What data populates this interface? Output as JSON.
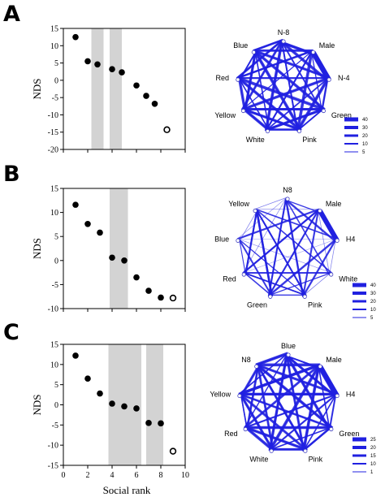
{
  "panel_labels": [
    "A",
    "B",
    "C"
  ],
  "chart_data": [
    {
      "type": "scatter",
      "panel": "A",
      "ylabel": "NDS",
      "xlim": [
        0,
        10
      ],
      "ylim": [
        -20,
        15
      ],
      "yticks": [
        15,
        10,
        5,
        0,
        -5,
        -10,
        -15,
        -20
      ],
      "shaded_x_ranges": [
        [
          2.3,
          3.3
        ],
        [
          3.8,
          4.8
        ]
      ],
      "points": [
        {
          "x": 1,
          "y": 12.5,
          "filled": true
        },
        {
          "x": 2,
          "y": 5.5,
          "filled": true
        },
        {
          "x": 2.8,
          "y": 4.6,
          "filled": true
        },
        {
          "x": 4,
          "y": 3.2,
          "filled": true
        },
        {
          "x": 4.8,
          "y": 2.3,
          "filled": true
        },
        {
          "x": 6,
          "y": -1.5,
          "filled": true
        },
        {
          "x": 6.8,
          "y": -4.5,
          "filled": true
        },
        {
          "x": 7.5,
          "y": -6.8,
          "filled": true
        },
        {
          "x": 8.5,
          "y": -14.3,
          "filled": false
        }
      ]
    },
    {
      "type": "scatter",
      "panel": "B",
      "ylabel": "NDS",
      "xlim": [
        0,
        10
      ],
      "ylim": [
        -10,
        15
      ],
      "yticks": [
        15,
        10,
        5,
        0,
        -5,
        -10
      ],
      "shaded_x_ranges": [
        [
          3.8,
          5.3
        ]
      ],
      "points": [
        {
          "x": 1,
          "y": 11.6,
          "filled": true
        },
        {
          "x": 2,
          "y": 7.6,
          "filled": true
        },
        {
          "x": 3,
          "y": 5.8,
          "filled": true
        },
        {
          "x": 4,
          "y": 0.6,
          "filled": true
        },
        {
          "x": 5,
          "y": 0,
          "filled": true
        },
        {
          "x": 6,
          "y": -3.5,
          "filled": true
        },
        {
          "x": 7,
          "y": -6.3,
          "filled": true
        },
        {
          "x": 8,
          "y": -7.7,
          "filled": true
        },
        {
          "x": 9,
          "y": -7.8,
          "filled": false
        }
      ]
    },
    {
      "type": "scatter",
      "panel": "C",
      "ylabel": "NDS",
      "xlabel": "Social rank",
      "xlim": [
        0,
        10
      ],
      "ylim": [
        -15,
        15
      ],
      "xticks": [
        0,
        2,
        4,
        6,
        8,
        10
      ],
      "yticks": [
        15,
        10,
        5,
        0,
        -5,
        -10,
        -15
      ],
      "shaded_x_ranges": [
        [
          3.7,
          6.4
        ],
        [
          6.8,
          8.2
        ]
      ],
      "points": [
        {
          "x": 1,
          "y": 12.2,
          "filled": true
        },
        {
          "x": 2,
          "y": 6.5,
          "filled": true
        },
        {
          "x": 3,
          "y": 2.8,
          "filled": true
        },
        {
          "x": 4,
          "y": 0.3,
          "filled": true
        },
        {
          "x": 5,
          "y": -0.4,
          "filled": true
        },
        {
          "x": 6,
          "y": -0.9,
          "filled": true
        },
        {
          "x": 7,
          "y": -4.5,
          "filled": true
        },
        {
          "x": 8,
          "y": -4.6,
          "filled": true
        },
        {
          "x": 9,
          "y": -11.5,
          "filled": false
        }
      ]
    }
  ],
  "networks": [
    {
      "panel": "A",
      "nodes": [
        "N-8",
        "Male",
        "N-4",
        "Green",
        "Pink",
        "White",
        "Yellow",
        "Red",
        "Blue"
      ],
      "legend": [
        "40",
        "30",
        "20",
        "10",
        "5"
      ],
      "edge_color": "#2020e0",
      "density": "dense"
    },
    {
      "panel": "B",
      "nodes": [
        "N8",
        "Male",
        "H4",
        "White",
        "Pink",
        "Green",
        "Red",
        "Blue",
        "Yellow"
      ],
      "legend": [
        "40",
        "30",
        "20",
        "10",
        "5"
      ],
      "edge_color": "#2020e0",
      "density": "sparse"
    },
    {
      "panel": "C",
      "nodes": [
        "Blue",
        "Male",
        "H4",
        "Green",
        "Pink",
        "White",
        "Red",
        "Yellow",
        "N8"
      ],
      "legend": [
        "25",
        "20",
        "15",
        "10",
        "1"
      ],
      "edge_color": "#2020e0",
      "density": "dense"
    }
  ]
}
